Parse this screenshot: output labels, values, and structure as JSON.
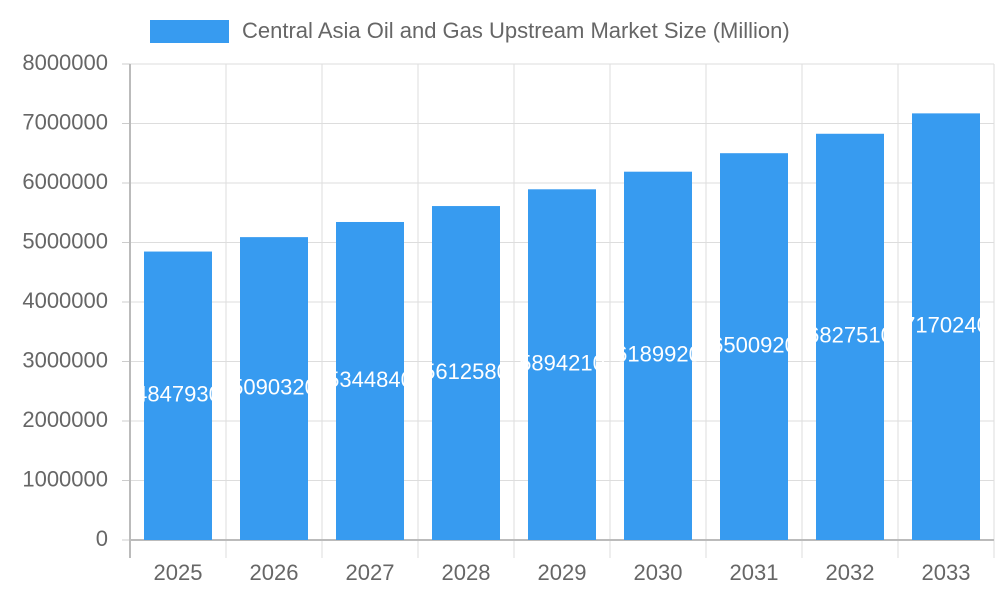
{
  "chart_data": {
    "type": "bar",
    "series": [
      {
        "name": "Central Asia Oil and Gas Upstream Market Size (Million)",
        "color": "#379bf0",
        "values": [
          4847930,
          5090320,
          5344840,
          5612580,
          5894210,
          6189920,
          6500920,
          6827510,
          7170240
        ]
      }
    ],
    "categories": [
      "2025",
      "2026",
      "2027",
      "2028",
      "2029",
      "2030",
      "2031",
      "2032",
      "2033"
    ],
    "ylim": [
      0,
      8000000
    ],
    "yticks": [
      0,
      1000000,
      2000000,
      3000000,
      4000000,
      5000000,
      6000000,
      7000000,
      8000000
    ],
    "grid": true
  }
}
